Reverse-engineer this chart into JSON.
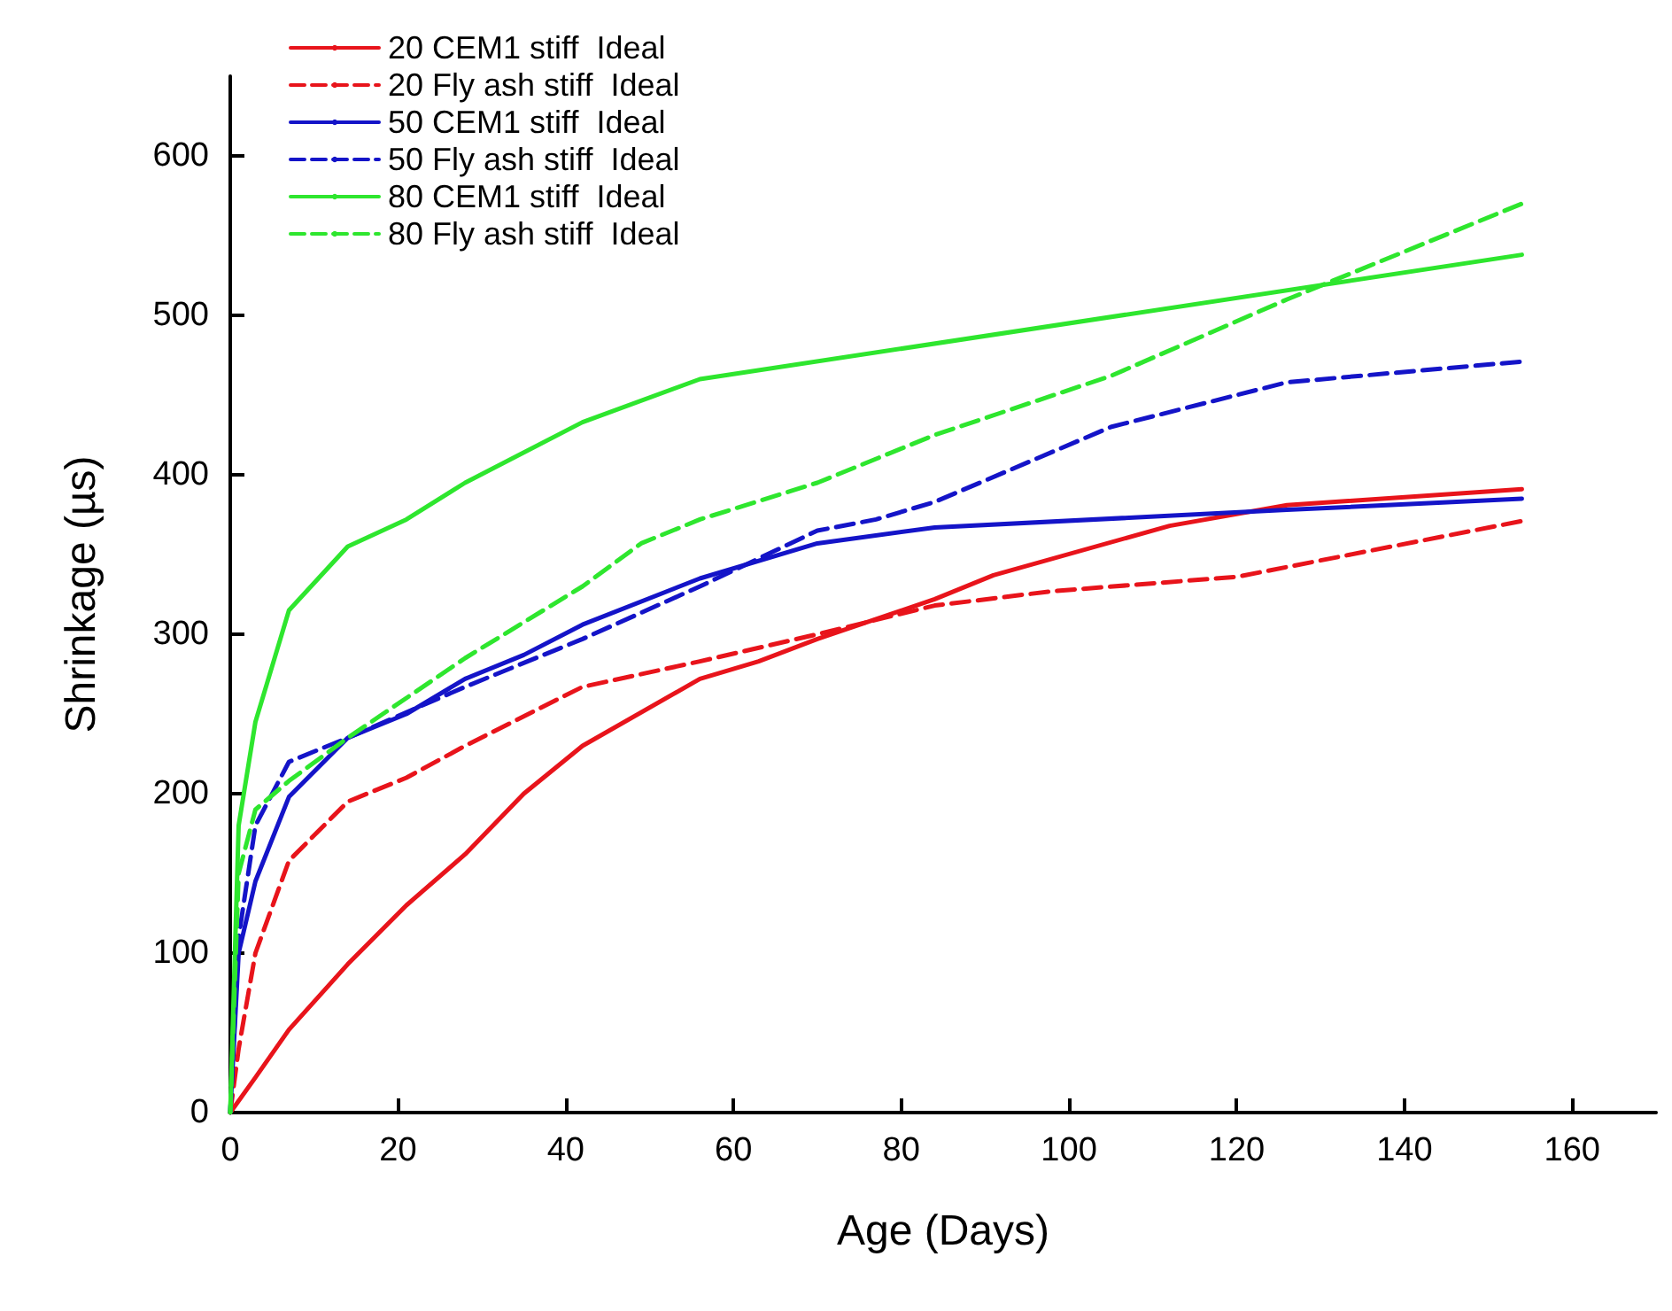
{
  "chart_data": {
    "type": "line",
    "xlabel": "Age (Days)",
    "ylabel": "Shrinkage (µs)",
    "xlim": [
      0,
      170
    ],
    "xticks": [
      0,
      20,
      40,
      60,
      80,
      100,
      120,
      140,
      160
    ],
    "ylim": [
      0,
      650
    ],
    "yticks": [
      0,
      100,
      200,
      300,
      400,
      500,
      600
    ],
    "grid": false,
    "legend": "top left",
    "marker": "none",
    "series": [
      {
        "name": "20 CEM1 stiff  Ideal",
        "color": "#e8141b",
        "line_style": "solid",
        "x": [
          0,
          3,
          7,
          14,
          21,
          28,
          35,
          42,
          56,
          63,
          70,
          84,
          91,
          112,
          126,
          154
        ],
        "values": [
          0,
          22,
          52,
          93,
          130,
          162,
          200,
          230,
          272,
          283,
          297,
          322,
          337,
          368,
          381,
          391
        ]
      },
      {
        "name": "20 Fly ash stiff  Ideal",
        "color": "#e8141b",
        "line_style": "dashed",
        "x": [
          0,
          1,
          3,
          7,
          14,
          21,
          28,
          42,
          56,
          70,
          84,
          98,
          120,
          154
        ],
        "values": [
          0,
          40,
          100,
          158,
          195,
          210,
          230,
          267,
          283,
          300,
          318,
          327,
          336,
          371
        ]
      },
      {
        "name": "50 CEM1 stiff  Ideal",
        "color": "#1414c8",
        "line_style": "solid",
        "x": [
          0,
          1,
          3,
          7,
          14,
          21,
          28,
          35,
          42,
          56,
          70,
          84,
          126,
          154
        ],
        "values": [
          0,
          100,
          145,
          198,
          235,
          250,
          272,
          287,
          306,
          335,
          357,
          367,
          378,
          385
        ]
      },
      {
        "name": "50 Fly ash stiff  Ideal",
        "color": "#1414c8",
        "line_style": "dashed",
        "x": [
          0,
          1,
          3,
          7,
          14,
          28,
          42,
          56,
          70,
          77,
          84,
          105,
          126,
          154
        ],
        "values": [
          0,
          110,
          180,
          220,
          235,
          267,
          297,
          330,
          365,
          372,
          383,
          430,
          458,
          471
        ]
      },
      {
        "name": "80 CEM1 stiff  Ideal",
        "color": "#2ee62e",
        "line_style": "solid",
        "x": [
          0,
          1,
          3,
          7,
          14,
          21,
          28,
          42,
          56,
          154
        ],
        "values": [
          0,
          180,
          245,
          315,
          355,
          372,
          395,
          433,
          460,
          538
        ]
      },
      {
        "name": "80 Fly ash stiff  Ideal",
        "color": "#2ee62e",
        "line_style": "dashed",
        "x": [
          0,
          1,
          3,
          7,
          14,
          28,
          42,
          49,
          56,
          70,
          84,
          105,
          126,
          154
        ],
        "values": [
          0,
          150,
          190,
          208,
          235,
          285,
          330,
          357,
          372,
          395,
          425,
          462,
          510,
          570
        ]
      }
    ]
  }
}
